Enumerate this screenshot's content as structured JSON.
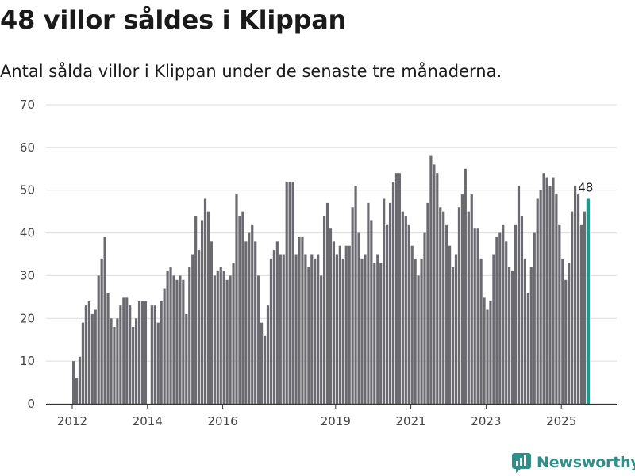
{
  "title": "48 villor såldes i Klippan",
  "subtitle": "Antal sålda villor i Klippan under de senaste tre månaderna.",
  "brand": {
    "name": "Newsworthy",
    "color": "#2f8f8a"
  },
  "colors": {
    "bar": "#6b6a70",
    "highlight": "#1a9a8c",
    "grid": "#dcdcdc",
    "axis": "#333333"
  },
  "chart_data": {
    "type": "bar",
    "title": "48 villor såldes i Klippan",
    "xlabel": "",
    "ylabel": "",
    "ylim": [
      0,
      70
    ],
    "yticks": [
      0,
      10,
      20,
      30,
      40,
      50,
      60,
      70
    ],
    "xtick_labels": [
      "2012",
      "2014",
      "2016",
      "2019",
      "2021",
      "2023",
      "2025"
    ],
    "start": "2012-01",
    "period": "rolling three-month total, monthly",
    "highlight_label": "48",
    "values": [
      10,
      6,
      11,
      19,
      23,
      24,
      21,
      22,
      30,
      34,
      39,
      26,
      20,
      18,
      20,
      23,
      25,
      25,
      23,
      18,
      20,
      24,
      24,
      24,
      0,
      23,
      23,
      19,
      24,
      27,
      31,
      32,
      30,
      29,
      30,
      29,
      21,
      32,
      35,
      44,
      36,
      43,
      48,
      45,
      38,
      30,
      31,
      32,
      31,
      29,
      30,
      33,
      49,
      44,
      45,
      38,
      40,
      42,
      38,
      30,
      19,
      16,
      23,
      34,
      36,
      38,
      35,
      35,
      52,
      52,
      52,
      35,
      39,
      39,
      35,
      32,
      35,
      34,
      35,
      30,
      44,
      47,
      41,
      38,
      35,
      37,
      34,
      37,
      37,
      46,
      51,
      40,
      34,
      35,
      47,
      43,
      33,
      35,
      33,
      48,
      42,
      47,
      52,
      54,
      54,
      45,
      44,
      42,
      37,
      34,
      30,
      34,
      40,
      47,
      58,
      56,
      54,
      46,
      45,
      42,
      37,
      32,
      35,
      46,
      49,
      55,
      45,
      49,
      41,
      41,
      34,
      25,
      22,
      24,
      35,
      39,
      40,
      42,
      38,
      32,
      31,
      42,
      51,
      44,
      34,
      26,
      32,
      40,
      48,
      50,
      54,
      53,
      51,
      53,
      49,
      42,
      34,
      29,
      33,
      45,
      51,
      49,
      42,
      45,
      48
    ]
  }
}
